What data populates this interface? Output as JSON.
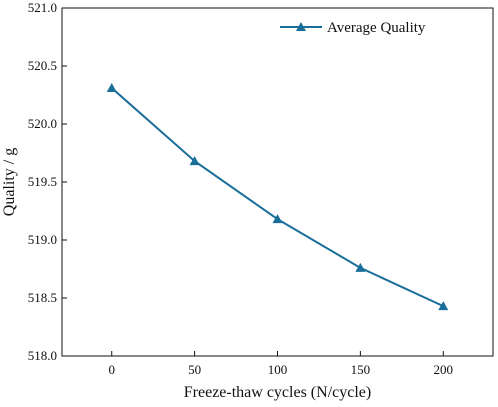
{
  "chart_data": {
    "type": "line",
    "xlabel": "Freeze-thaw cycles (N/cycle)",
    "ylabel": "Quality  / g",
    "x": [
      0,
      50,
      100,
      150,
      200
    ],
    "x_ticks": [
      "0",
      "50",
      "100",
      "150",
      "200"
    ],
    "xlim": [
      -30,
      230
    ],
    "ylim": [
      518.0,
      521.0
    ],
    "y_ticks": [
      "518.0",
      "518.5",
      "519.0",
      "519.5",
      "520.0",
      "520.5",
      "521.0"
    ],
    "series": [
      {
        "name": "Average Quality",
        "values": [
          520.31,
          519.68,
          519.18,
          518.76,
          518.43
        ],
        "color": "#1a6e9a",
        "marker": "triangle"
      }
    ],
    "grid": false,
    "legend_position": "top-right"
  }
}
